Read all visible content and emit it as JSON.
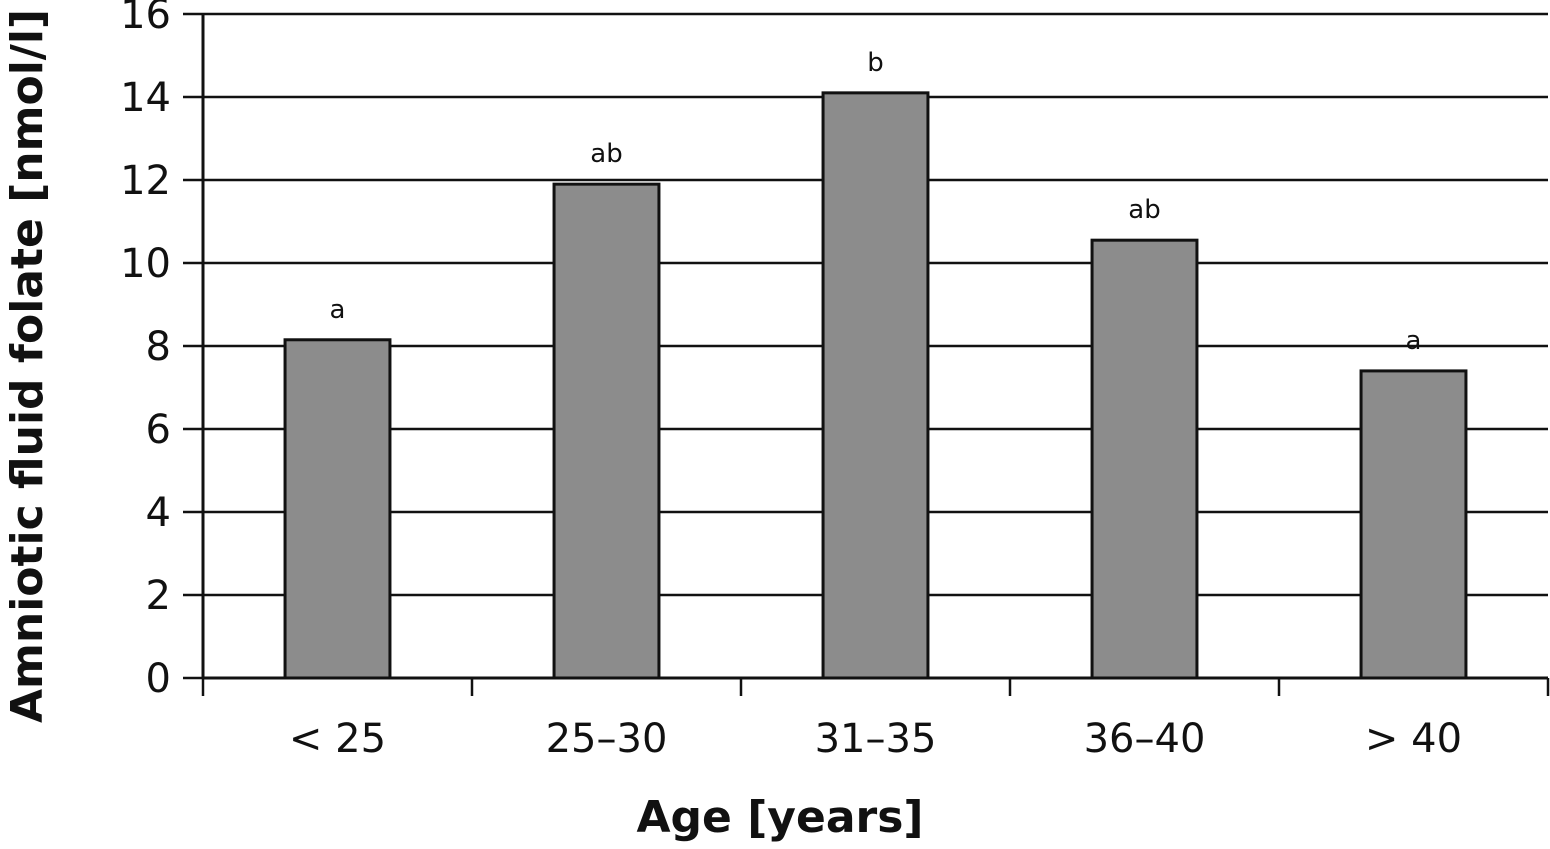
{
  "chart_data": {
    "type": "bar",
    "title": "",
    "xlabel": "Age [years]",
    "ylabel": "Amniotic fluid folate [nmol/l]",
    "ylim": [
      0,
      16
    ],
    "yticks": [
      0,
      2,
      4,
      6,
      8,
      10,
      12,
      14,
      16
    ],
    "ytick_labels": [
      "0",
      "2",
      "4",
      "6",
      "8",
      "10",
      "12",
      "14",
      "16"
    ],
    "categories": [
      "< 25",
      "25–30",
      "31–35",
      "36–40",
      "> 40"
    ],
    "values": [
      8.15,
      11.9,
      14.1,
      10.55,
      7.4
    ],
    "significance_labels": [
      "a",
      "ab",
      "b",
      "ab",
      "a"
    ],
    "grid": true,
    "legend": "none",
    "bar_color": "#8c8c8c",
    "bar_stroke": "#111111"
  }
}
